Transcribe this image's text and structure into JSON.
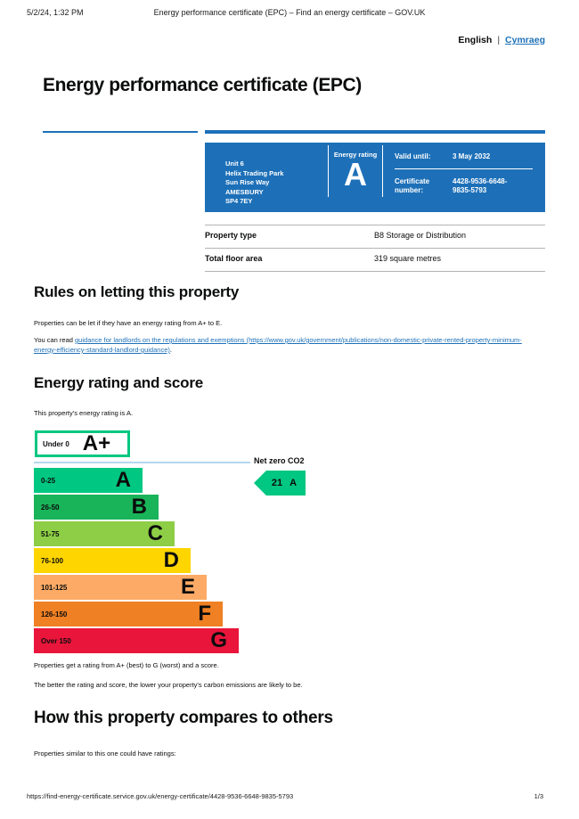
{
  "print_header": {
    "datetime": "5/2/24, 1:32 PM",
    "document_title": "Energy performance certificate (EPC) – Find an energy certificate – GOV.UK"
  },
  "language_switcher": {
    "current": "English",
    "separator": "|",
    "link_label": "Cymraeg"
  },
  "page": {
    "title": "Energy performance certificate (EPC)"
  },
  "summary_box": {
    "address_lines": [
      "Unit 6",
      "Helix Trading Park",
      "Sun Rise Way",
      "AMESBURY",
      "SP4 7EY"
    ],
    "energy_rating_label": "Energy rating",
    "energy_rating": "A",
    "valid_until_label": "Valid until:",
    "valid_until_value": "3 May 2032",
    "certificate_number_label": "Certificate number:",
    "certificate_number_lines": [
      "4428-9536-6648-",
      "9835-5793"
    ]
  },
  "property_table": {
    "rows": [
      {
        "label": "Property type",
        "value": "B8 Storage or Distribution"
      },
      {
        "label": "Total floor area",
        "value": "319 square metres"
      }
    ]
  },
  "rules_section": {
    "heading": "Rules on letting this property",
    "paragraph1": "Properties can be let if they have an energy rating from A+ to E.",
    "paragraph2_prefix": "You can read ",
    "paragraph2_link": "guidance for landlords on the regulations and exemptions (https://www.gov.uk/government/publications/non-domestic-private-rented-property-minimum-energy-efficiency-standard-landlord-guidance)",
    "paragraph2_suffix": "."
  },
  "rating_section": {
    "heading": "Energy rating and score",
    "intro": "This property's energy rating is A.",
    "note1": "Properties get a rating from A+ (best) to G (worst) and a score.",
    "note2": "The better the rating and score, the lower your property's carbon emissions are likely to be."
  },
  "chart_data": {
    "type": "bar",
    "title": "Energy rating and score",
    "bands": [
      {
        "range": "Under 0",
        "letter": "A+",
        "fill": "#ffffff",
        "outline": "#00c781"
      },
      {
        "range": "0-25",
        "letter": "A",
        "fill": "#00c781"
      },
      {
        "range": "26-50",
        "letter": "B",
        "fill": "#19b459"
      },
      {
        "range": "51-75",
        "letter": "C",
        "fill": "#8dce46"
      },
      {
        "range": "76-100",
        "letter": "D",
        "fill": "#ffd500"
      },
      {
        "range": "101-125",
        "letter": "E",
        "fill": "#fcaa65"
      },
      {
        "range": "126-150",
        "letter": "F",
        "fill": "#ef8023"
      },
      {
        "range": "Over 150",
        "letter": "G",
        "fill": "#e9153b"
      }
    ],
    "net_zero_line_label": "Net zero CO2",
    "marker": {
      "score": "21",
      "letter": "A",
      "fill": "#00c781"
    },
    "property_score": 21,
    "property_rating": "A"
  },
  "compare_section": {
    "heading": "How this property compares to others",
    "intro": "Properties similar to this one could have ratings:"
  },
  "print_footer": {
    "url": "https://find-energy-certificate.service.gov.uk/energy-certificate/4428-9536-6648-9835-5793",
    "page_indicator": "1/3"
  },
  "colors": {
    "govuk_blue": "#1d70b8",
    "table_border": "#b1b4b6",
    "netzero_line": "#b3d7ee",
    "text": "#0b0c0c"
  }
}
